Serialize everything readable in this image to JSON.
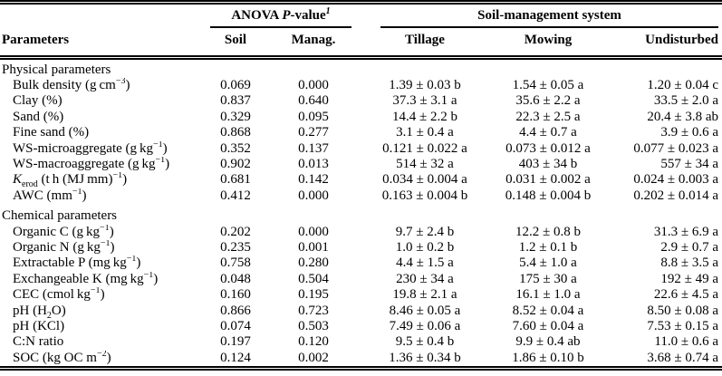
{
  "header": {
    "parameters": "Parameters",
    "anova_group_html": "ANOVA <i>P</i>-value<sup><i>1</i></sup>",
    "soil_management_group": "Soil-management system",
    "columns": [
      "Soil",
      "Manag.",
      "Tillage",
      "Mowing",
      "Undisturbed"
    ]
  },
  "sections": [
    {
      "title": "Physical parameters",
      "rows": [
        {
          "param": "Bulk density (g cm<sup>−3</sup>)",
          "soil": "0.069",
          "manag": "0.000",
          "tillage": "1.39 ± 0.03 b",
          "mowing": "1.54 ± 0.05 a",
          "undisturbed": "1.20 ± 0.04 c"
        },
        {
          "param": "Clay (%)",
          "soil": "0.837",
          "manag": "0.640",
          "tillage": "37.3 ± 3.1 a",
          "mowing": "35.6 ± 2.2 a",
          "undisturbed": "33.5 ± 2.0 a"
        },
        {
          "param": "Sand (%)",
          "soil": "0.329",
          "manag": "0.095",
          "tillage": "14.4 ± 2.2 b",
          "mowing": "22.3 ± 2.5 a",
          "undisturbed": "20.4 ± 3.8 ab"
        },
        {
          "param": "Fine sand (%)",
          "soil": "0.868",
          "manag": "0.277",
          "tillage": "3.1 ± 0.4 a",
          "mowing": "4.4 ± 0.7 a",
          "undisturbed": "3.9 ± 0.6 a"
        },
        {
          "param": "WS-microaggregate (g kg<sup>−1</sup>)",
          "soil": "0.352",
          "manag": "0.137",
          "tillage": "0.121 ± 0.022 a",
          "mowing": "0.073 ± 0.012 a",
          "undisturbed": "0.077 ± 0.023 a"
        },
        {
          "param": "WS-macroaggregate (g kg<sup>−1</sup>)",
          "soil": "0.902",
          "manag": "0.013",
          "tillage": "514 ± 32 a",
          "mowing": "403 ± 34 b",
          "undisturbed": "557 ± 34 a"
        },
        {
          "param": "<i>K</i><sub>erod</sub> (t h (MJ mm)<sup>−1</sup>)",
          "soil": "0.681",
          "manag": "0.142",
          "tillage": "0.034 ± 0.004 a",
          "mowing": "0.031 ± 0.002 a",
          "undisturbed": "0.024 ± 0.003 a"
        },
        {
          "param": "AWC (mm<sup>−1</sup>)",
          "soil": "0.412",
          "manag": "0.000",
          "tillage": "0.163 ± 0.004 b",
          "mowing": "0.148 ± 0.004 b",
          "undisturbed": "0.202 ± 0.014 a"
        }
      ]
    },
    {
      "title": "Chemical parameters",
      "rows": [
        {
          "param": "Organic C (g kg<sup>−1</sup>)",
          "soil": "0.202",
          "manag": "0.000",
          "tillage": "9.7 ± 2.4 b",
          "mowing": "12.2 ± 0.8 b",
          "undisturbed": "31.3 ± 6.9 a"
        },
        {
          "param": "Organic N (g kg<sup>−1</sup>)",
          "soil": "0.235",
          "manag": "0.001",
          "tillage": "1.0 ± 0.2 b",
          "mowing": "1.2 ± 0.1 b",
          "undisturbed": "2.9 ± 0.7 a"
        },
        {
          "param": "Extractable P (mg kg<sup>−1</sup>)",
          "soil": "0.758",
          "manag": "0.280",
          "tillage": "4.4 ± 1.5 a",
          "mowing": "5.4 ± 1.0 a",
          "undisturbed": "8.8 ± 3.5 a"
        },
        {
          "param": "Exchangeable K (mg kg<sup>−1</sup>)",
          "soil": "0.048",
          "manag": "0.504",
          "tillage": "230 ± 34 a",
          "mowing": "175 ± 30 a",
          "undisturbed": "192 ± 49 a"
        },
        {
          "param": "CEC (cmol kg<sup>−1</sup>)",
          "soil": "0.160",
          "manag": "0.195",
          "tillage": "19.8 ± 2.1 a",
          "mowing": "16.1 ± 1.0 a",
          "undisturbed": "22.6 ± 4.5 a"
        },
        {
          "param": "pH (H<sub>2</sub>O)",
          "soil": "0.866",
          "manag": "0.723",
          "tillage": "8.46 ± 0.05 a",
          "mowing": "8.52 ± 0.04 a",
          "undisturbed": "8.50 ± 0.08 a"
        },
        {
          "param": "pH (KCl)",
          "soil": "0.074",
          "manag": "0.503",
          "tillage": "7.49 ± 0.06 a",
          "mowing": "7.60 ± 0.04 a",
          "undisturbed": "7.53 ± 0.15 a"
        },
        {
          "param": "C:N ratio",
          "soil": "0.197",
          "manag": "0.120",
          "tillage": "9.5 ± 0.4 b",
          "mowing": "9.9 ± 0.4 ab",
          "undisturbed": "11.0 ± 0.6 a"
        },
        {
          "param": "SOC (kg OC m<sup>−2</sup>)",
          "soil": "0.124",
          "manag": "0.002",
          "tillage": "1.36 ± 0.34 b",
          "mowing": "1.86 ± 0.10 b",
          "undisturbed": "3.68 ± 0.74 a"
        }
      ]
    }
  ]
}
